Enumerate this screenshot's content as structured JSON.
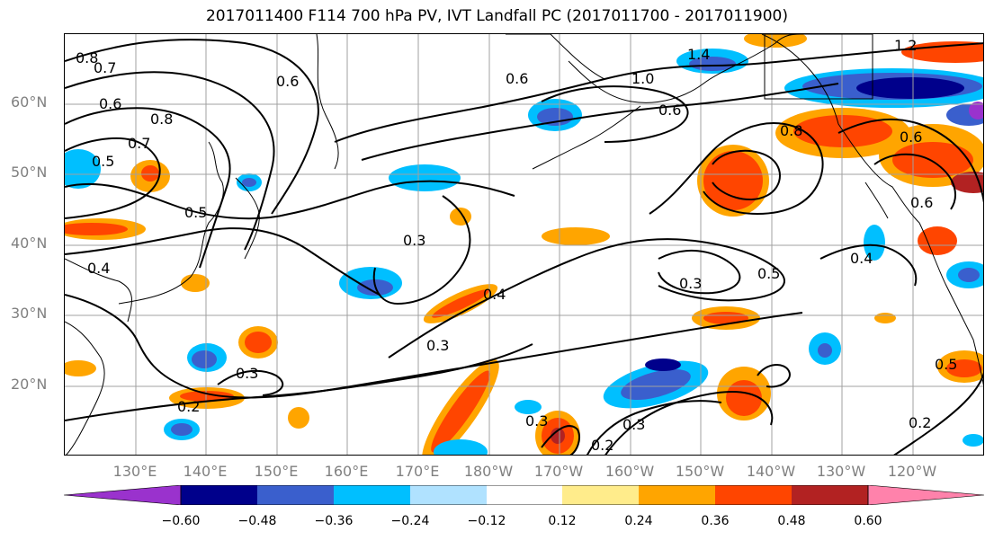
{
  "title": "2017011400 F114 700 hPa PV, IVT Landfall PC (2017011700 - 2017011900)",
  "lat_labels": [
    "60°N",
    "50°N",
    "40°N",
    "30°N",
    "20°N"
  ],
  "lon_labels": [
    "130°E",
    "140°E",
    "150°E",
    "160°E",
    "170°E",
    "180°W",
    "170°W",
    "160°W",
    "150°W",
    "140°W",
    "130°W",
    "120°W"
  ],
  "contour_labels": [
    "0.8",
    "0.7",
    "0.6",
    "0.8",
    "0.7",
    "0.5",
    "0.5",
    "0.4",
    "0.6",
    "0.3",
    "0.4",
    "0.3",
    "0.3",
    "0.2",
    "0.3",
    "0.3",
    "0.2",
    "0.3",
    "0.5",
    "0.4",
    "0.6",
    "1.4",
    "1.0",
    "0.8",
    "0.6",
    "1.2",
    "0.6",
    "0.5",
    "0.2",
    "0.6"
  ],
  "colorbar": {
    "ticks": [
      "−0.60",
      "−0.48",
      "−0.36",
      "−0.24",
      "−0.12",
      "0.12",
      "0.24",
      "0.36",
      "0.48",
      "0.60"
    ],
    "colors": [
      "#9a32cd",
      "#00008b",
      "#3a5fcd",
      "#00bfff",
      "#b0e2ff",
      "#ffffff",
      "#ffec8b",
      "#ffa500",
      "#ff4500",
      "#b22222",
      "#ff82ab"
    ]
  }
}
